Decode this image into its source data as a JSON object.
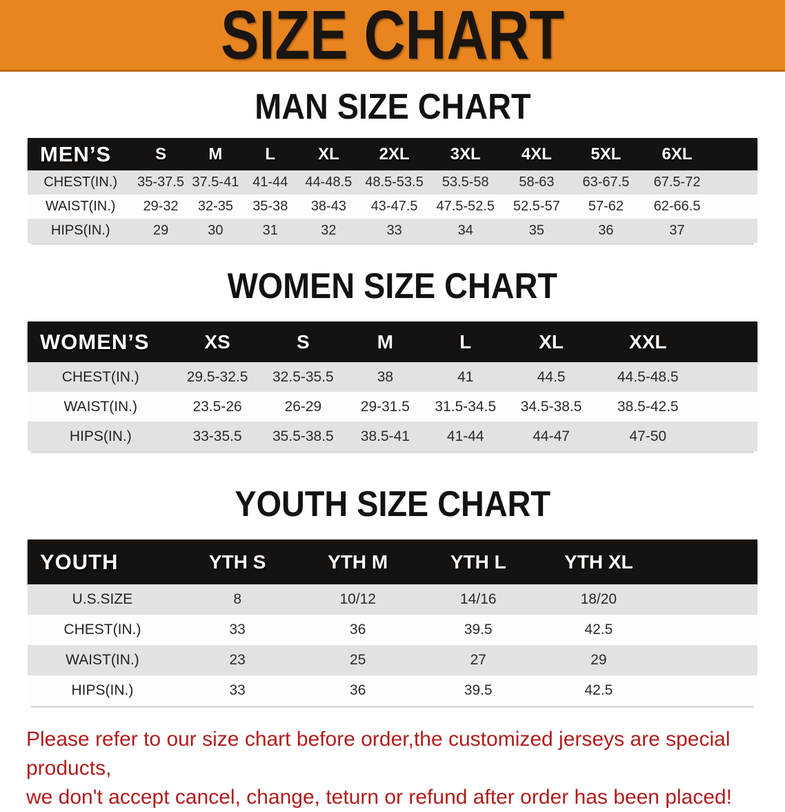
{
  "banner": {
    "title": "SIZE CHART"
  },
  "man_section": {
    "title": "MAN SIZE CHART"
  },
  "women_section": {
    "title": "WOMEN SIZE CHART"
  },
  "youth_section": {
    "title": "YOUTH SIZE CHART"
  },
  "colors": {
    "banner_bg": "#E8851F",
    "table_header_bg": "#161210",
    "row_shaded": "#E2E2E2",
    "row_plain": "#FDFDFD",
    "note_red": "#B11C1C"
  },
  "tables": {
    "men": {
      "header": [
        "MEN’S",
        "S",
        "M",
        "L",
        "XL",
        "2XL",
        "3XL",
        "4XL",
        "5XL",
        "6XL"
      ],
      "col_widths": [
        "14.5%",
        "7.5%",
        "7.5%",
        "7.5%",
        "8.5%",
        "9.5%",
        "10%",
        "9.5%",
        "9.5%",
        "10%",
        "6%"
      ],
      "rows": [
        {
          "label": "CHEST(IN.)",
          "values": [
            "35-37.5",
            "37.5-41",
            "41-44",
            "44-48.5",
            "48.5-53.5",
            "53.5-58",
            "58-63",
            "63-67.5",
            "67.5-72"
          ]
        },
        {
          "label": "WAIST(IN.)",
          "values": [
            "29-32",
            "32-35",
            "35-38",
            "38-43",
            "43-47.5",
            "47.5-52.5",
            "52.5-57",
            "57-62",
            "62-66.5"
          ]
        },
        {
          "label": "HIPS(IN.)",
          "values": [
            "29",
            "30",
            "31",
            "32",
            "33",
            "34",
            "35",
            "36",
            "37"
          ]
        }
      ]
    },
    "women": {
      "header": [
        "WOMEN’S",
        "XS",
        "S",
        "M",
        "L",
        "XL",
        "XXL"
      ],
      "col_widths": [
        "20%",
        "12%",
        "11.5%",
        "11%",
        "11%",
        "12.5%",
        "14%",
        "8%"
      ],
      "rows": [
        {
          "label": "CHEST(IN.)",
          "values": [
            "29.5-32.5",
            "32.5-35.5",
            "38",
            "41",
            "44.5",
            "44.5-48.5"
          ]
        },
        {
          "label": "WAIST(IN.)",
          "values": [
            "23.5-26",
            "26-29",
            "29-31.5",
            "31.5-34.5",
            "34.5-38.5",
            "38.5-42.5"
          ]
        },
        {
          "label": "HIPS(IN.)",
          "values": [
            "33-35.5",
            "35.5-38.5",
            "38.5-41",
            "41-44",
            "44-47",
            "47-50"
          ]
        }
      ]
    },
    "youth": {
      "header": [
        "YOUTH",
        "YTH S",
        "YTH M",
        "YTH L",
        "YTH XL"
      ],
      "col_widths": [
        "20.5%",
        "16.5%",
        "16.5%",
        "16.5%",
        "16.5%",
        "13.5%"
      ],
      "rows": [
        {
          "label": "U.S.SIZE",
          "values": [
            "8",
            "10/12",
            "14/16",
            "18/20"
          ]
        },
        {
          "label": "CHEST(IN.)",
          "values": [
            "33",
            "36",
            "39.5",
            "42.5"
          ]
        },
        {
          "label": "WAIST(IN.)",
          "values": [
            "23",
            "25",
            "27",
            "29"
          ]
        },
        {
          "label": "HIPS(IN.)",
          "values": [
            "33",
            "36",
            "39.5",
            "42.5"
          ]
        }
      ]
    }
  },
  "note": {
    "line1": "Please refer to our size chart before order,the customized jerseys are special products,",
    "line2": "we don't accept cancel, change, teturn or refund after order has been placed!"
  }
}
